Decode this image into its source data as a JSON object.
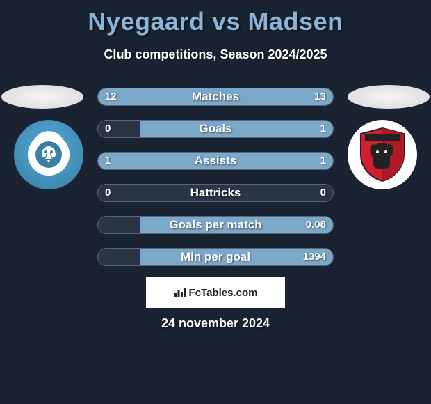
{
  "background_color": "#1a2332",
  "title": {
    "text": "Nyegaard vs Madsen",
    "color": "#8ab4d8",
    "fontsize": 36
  },
  "subtitle": {
    "text": "Club competitions, Season 2024/2025",
    "color": "#ffffff",
    "fontsize": 18
  },
  "clubs": {
    "left": {
      "name": "FC Roskilde",
      "primary_color": "#3a7fa8",
      "secondary_color": "#ffffff",
      "icon": "eagle-crest"
    },
    "right": {
      "name": "FC Fredericia",
      "primary_color": "#d11f2f",
      "secondary_color": "#222222",
      "icon": "bear-shield"
    }
  },
  "stats": {
    "bar_fill_color": "#7ba8c9",
    "bar_bg_color": "#2a3548",
    "bar_border_color": "#5a6578",
    "text_color": "#ffffff",
    "label_fontsize": 17,
    "value_fontsize": 15,
    "rows": [
      {
        "label": "Matches",
        "left_val": "12",
        "right_val": "13",
        "left_pct": 19,
        "right_pct": 81
      },
      {
        "label": "Goals",
        "left_val": "0",
        "right_val": "1",
        "left_pct": 0,
        "right_pct": 82
      },
      {
        "label": "Assists",
        "left_val": "1",
        "right_val": "1",
        "left_pct": 50,
        "right_pct": 50
      },
      {
        "label": "Hattricks",
        "left_val": "0",
        "right_val": "0",
        "left_pct": 0,
        "right_pct": 0
      },
      {
        "label": "Goals per match",
        "left_val": "",
        "right_val": "0.08",
        "left_pct": 0,
        "right_pct": 82
      },
      {
        "label": "Min per goal",
        "left_val": "",
        "right_val": "1394",
        "left_pct": 0,
        "right_pct": 82
      }
    ]
  },
  "footer": {
    "brand": "FcTables.com",
    "brand_bg": "#ffffff",
    "brand_color": "#222222",
    "icon": "bar-chart",
    "date": "24 november 2024"
  }
}
